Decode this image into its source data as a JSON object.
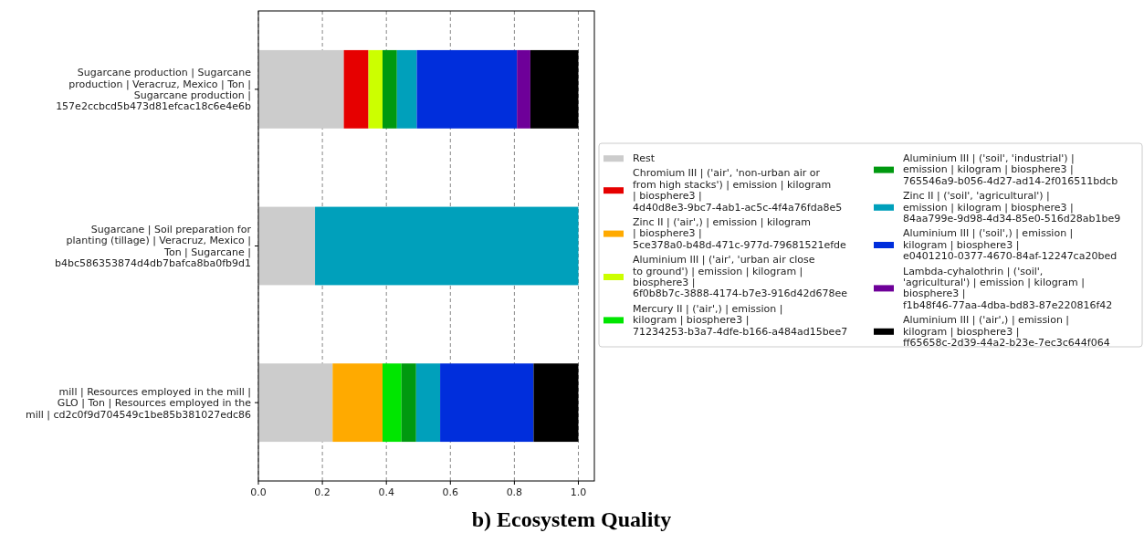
{
  "chart_data": {
    "type": "bar",
    "orientation": "horizontal",
    "stacked": true,
    "title": "b) Ecosystem Quality",
    "categories": [
      "Sugarcane production | Sugarcane production | Veracruz, Mexico | Ton | Sugarcane production | 157e2ccbcd5b473d81efcac18c6e4e6b",
      "Sugarcane | Soil preparation for planting (tillage) | Veracruz, Mexico | Ton | Sugarcane | b4bc586353874d4db7bafca8ba0fb9d1",
      "mill | Resources employed in the mill | GLO | Ton | Resources employed in the mill | cd2c0f9d704549c1be85b381027edc86"
    ],
    "series": [
      {
        "name": "Rest",
        "color": "#cccccc",
        "values": [
          0.267,
          0.177,
          0.232
        ]
      },
      {
        "name": "Chromium III | ('air', 'non-urban air or from high stacks') | emission | kilogram | biosphere3 | 4d40d8e3-9bc7-4ab1-ac5c-4f4a76fda8e5",
        "color": "#e60000",
        "values": [
          0.077,
          null,
          null
        ]
      },
      {
        "name": "Zinc II | ('air',) | emission | kilogram | biosphere3 | 5ce378a0-b48d-471c-977d-79681521efde",
        "color": "#ffaa00",
        "values": [
          null,
          null,
          0.156
        ]
      },
      {
        "name": "Aluminium III | ('air', 'urban air close to ground') | emission | kilogram | biosphere3 | 6f0b8b7c-3888-4174-b7e3-916d42d678ee",
        "color": "#ccff00",
        "values": [
          0.044,
          null,
          null
        ]
      },
      {
        "name": "Mercury II | ('air',) | emission | kilogram | biosphere3 | 71234253-b3a7-4dfe-b166-a484ad15bee7",
        "color": "#00e600",
        "values": [
          null,
          null,
          0.059
        ]
      },
      {
        "name": "Aluminium III | ('soil', 'industrial') | emission | kilogram | biosphere3 | 765546a9-b056-4d27-ad14-2f016511bdcb",
        "color": "#00990f",
        "values": [
          0.045,
          null,
          0.046
        ]
      },
      {
        "name": "Zinc II | ('soil', 'agricultural') | emission | kilogram | biosphere3 | 84aa799e-9d98-4d34-85e0-516d28ab1be9",
        "color": "#00a0bb",
        "values": [
          0.062,
          0.823,
          0.075
        ]
      },
      {
        "name": "Aluminium III | ('soil',) | emission | kilogram | biosphere3 | e0401210-0377-4670-84af-12247ca20bed",
        "color": "#002edc",
        "values": [
          0.313,
          null,
          0.292
        ]
      },
      {
        "name": "Lambda-cyhalothrin | ('soil', 'agricultural') | emission | kilogram | biosphere3 | f1b48f46-77aa-4dba-bd83-87e220816f42",
        "color": "#6e0099",
        "values": [
          0.042,
          null,
          null
        ]
      },
      {
        "name": "Aluminium III | ('air',) | emission | kilogram | biosphere3 | ff65658c-2d39-44a2-b23e-7ec3c644f064",
        "color": "#000000",
        "values": [
          0.15,
          null,
          0.14
        ]
      }
    ],
    "xlim": [
      0,
      1.05
    ],
    "xticks": [
      {
        "value": 0,
        "label": "0.0"
      },
      {
        "value": 0.2,
        "label": "0.2"
      },
      {
        "value": 0.4,
        "label": "0.4"
      },
      {
        "value": 0.6,
        "label": "0.6"
      },
      {
        "value": 0.8,
        "label": "0.8"
      },
      {
        "value": 1,
        "label": "1.0"
      }
    ],
    "grid": "x",
    "legend": "right"
  }
}
